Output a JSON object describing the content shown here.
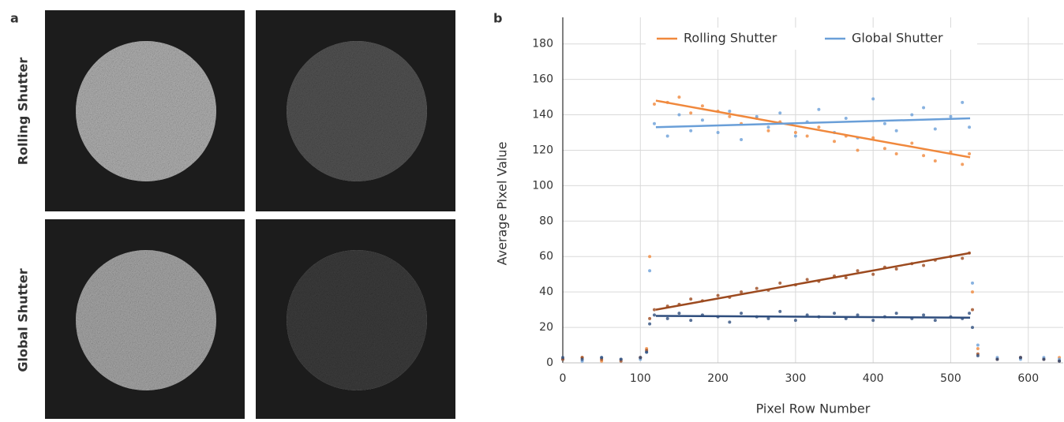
{
  "panel_labels": [
    "a",
    "b"
  ],
  "image_row_labels": [
    {
      "text": "Rolling Shutter",
      "color": "#f0883c"
    },
    {
      "text": "Global Shutter",
      "color": "#6a9fd8"
    }
  ],
  "chart_data": {
    "type": "scatter",
    "x_label": "Pixel Row Number",
    "y_label": "Average Pixel Value",
    "xlim": [
      0,
      645
    ],
    "ylim": [
      0,
      195
    ],
    "xticks": [
      0,
      100,
      200,
      300,
      400,
      500,
      600
    ],
    "yticks": [
      0,
      20,
      40,
      60,
      80,
      100,
      120,
      140,
      160,
      180
    ],
    "grid": true,
    "legend": "top",
    "series": [
      {
        "name": "Rolling Shutter",
        "color": "#f0883c",
        "x": [
          0,
          25,
          50,
          75,
          100,
          108,
          112,
          118,
          135,
          150,
          165,
          180,
          200,
          215,
          230,
          250,
          265,
          280,
          300,
          315,
          330,
          350,
          365,
          380,
          400,
          415,
          430,
          450,
          465,
          480,
          500,
          515,
          524,
          528,
          535,
          560,
          590,
          620,
          640
        ],
        "values": [
          2,
          3,
          1,
          2,
          3,
          8,
          60,
          146,
          147,
          150,
          141,
          145,
          142,
          139,
          135,
          138,
          131,
          136,
          130,
          128,
          133,
          125,
          128,
          120,
          127,
          121,
          118,
          124,
          117,
          114,
          119,
          112,
          118,
          40,
          8,
          2,
          3,
          2,
          3
        ],
        "fit": {
          "x": [
            120,
            525
          ],
          "values": [
            148,
            116
          ]
        }
      },
      {
        "name": "Global Shutter",
        "color": "#6a9fd8",
        "x": [
          0,
          25,
          50,
          75,
          100,
          108,
          112,
          118,
          135,
          150,
          165,
          180,
          200,
          215,
          230,
          250,
          265,
          280,
          300,
          315,
          330,
          350,
          365,
          380,
          400,
          415,
          430,
          450,
          465,
          480,
          500,
          515,
          524,
          528,
          535,
          560,
          590,
          620,
          640
        ],
        "values": [
          2,
          1,
          3,
          2,
          2,
          6,
          52,
          135,
          128,
          140,
          131,
          137,
          130,
          142,
          126,
          139,
          133,
          141,
          128,
          136,
          143,
          130,
          138,
          127,
          149,
          135,
          131,
          140,
          144,
          132,
          139,
          147,
          133,
          45,
          10,
          3,
          2,
          3,
          2
        ],
        "fit": {
          "x": [
            120,
            525
          ],
          "values": [
            133,
            138
          ]
        }
      },
      {
        "color": "#9c4a1f",
        "x": [
          0,
          25,
          50,
          75,
          100,
          108,
          112,
          118,
          135,
          150,
          165,
          180,
          200,
          215,
          230,
          250,
          265,
          280,
          300,
          315,
          330,
          350,
          365,
          380,
          400,
          415,
          430,
          450,
          465,
          480,
          500,
          515,
          524,
          528,
          535,
          560,
          590,
          620,
          640
        ],
        "values": [
          2,
          3,
          2,
          1,
          3,
          7,
          25,
          30,
          32,
          33,
          36,
          35,
          38,
          37,
          40,
          42,
          41,
          45,
          44,
          47,
          46,
          49,
          48,
          52,
          50,
          54,
          53,
          56,
          55,
          58,
          60,
          59,
          62,
          30,
          5,
          2,
          3,
          2,
          1
        ],
        "fit": {
          "x": [
            120,
            525
          ],
          "values": [
            30,
            62
          ]
        }
      },
      {
        "color": "#2e4d7d",
        "x": [
          0,
          25,
          50,
          75,
          100,
          108,
          112,
          118,
          135,
          150,
          165,
          180,
          200,
          215,
          230,
          250,
          265,
          280,
          300,
          315,
          330,
          350,
          365,
          380,
          400,
          415,
          430,
          450,
          465,
          480,
          500,
          515,
          524,
          528,
          535,
          560,
          590,
          620,
          640
        ],
        "values": [
          3,
          2,
          3,
          2,
          3,
          6,
          22,
          27,
          25,
          28,
          24,
          27,
          26,
          23,
          28,
          26,
          25,
          29,
          24,
          27,
          26,
          28,
          25,
          27,
          24,
          26,
          28,
          25,
          27,
          24,
          26,
          25,
          28,
          20,
          4,
          2,
          3,
          2,
          1
        ],
        "fit": {
          "x": [
            120,
            525
          ],
          "values": [
            26.5,
            25.5
          ]
        }
      }
    ]
  }
}
